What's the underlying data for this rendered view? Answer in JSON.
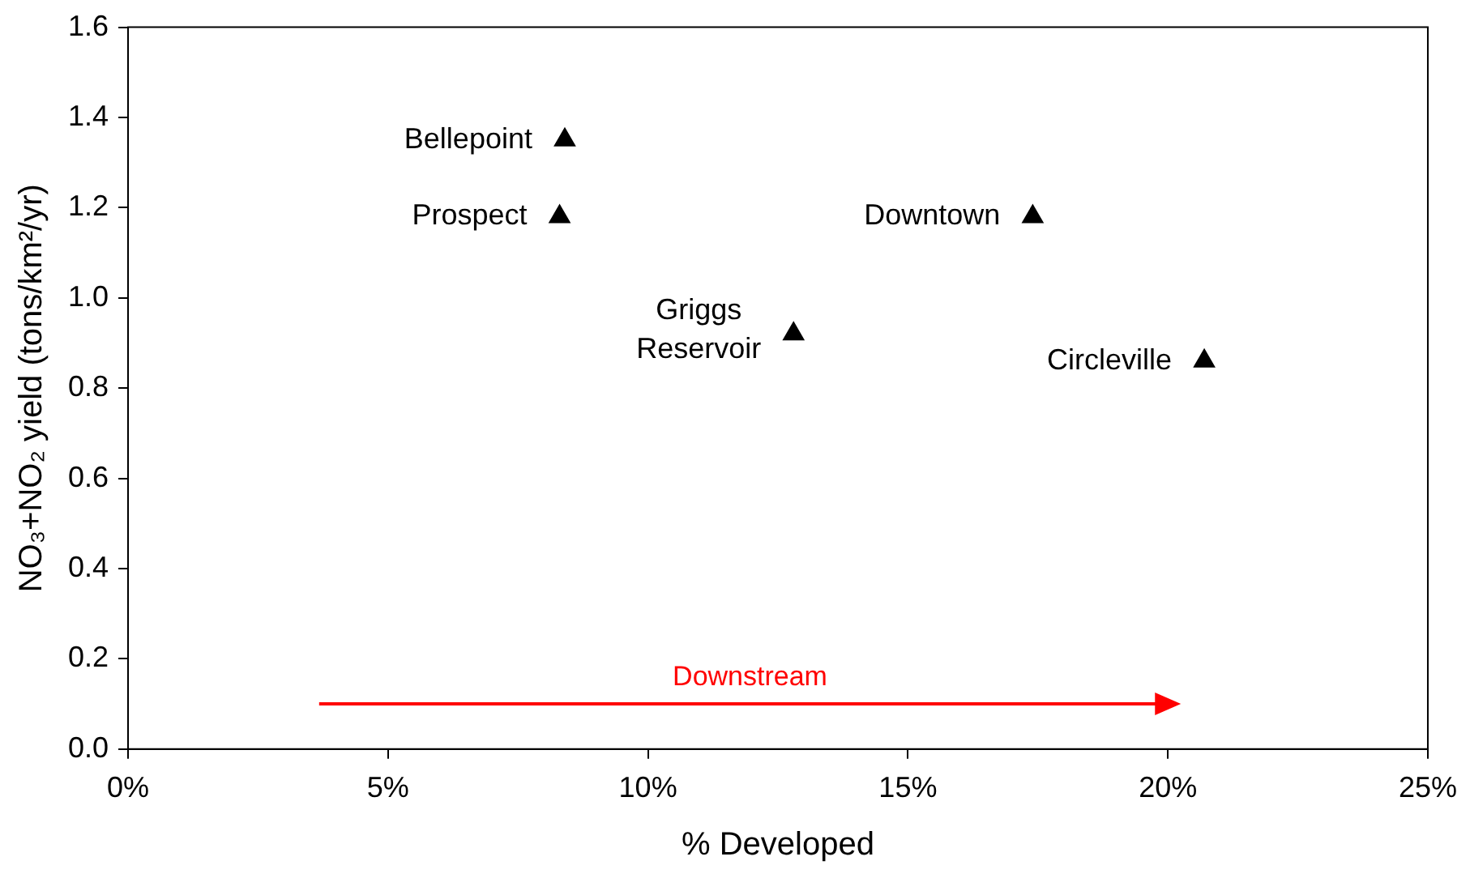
{
  "chart_data": {
    "type": "scatter",
    "xlabel": "% Developed",
    "ylabel": "NO₃+NO₂ yield (tons/km²/yr)",
    "x": [
      8.4,
      8.3,
      17.4,
      12.8,
      20.7
    ],
    "values": [
      1.35,
      1.18,
      1.18,
      0.92,
      0.86
    ],
    "color": "#000000",
    "marker": "triangle",
    "grid": false,
    "legend": false,
    "xlim": [
      0,
      25
    ],
    "xticks": [
      {
        "value": 0,
        "label": "0%"
      },
      {
        "value": 5,
        "label": "5%"
      },
      {
        "value": 10,
        "label": "10%"
      },
      {
        "value": 15,
        "label": "15%"
      },
      {
        "value": 20,
        "label": "20%"
      },
      {
        "value": 25,
        "label": "25%"
      }
    ],
    "ylim": [
      0,
      1.6
    ],
    "yticks": [
      {
        "value": 0,
        "label": "0.0"
      },
      {
        "value": 0.2,
        "label": "0.2"
      },
      {
        "value": 0.4,
        "label": "0.4"
      },
      {
        "value": 0.6,
        "label": "0.6"
      },
      {
        "value": 0.8,
        "label": "0.8"
      },
      {
        "value": 1,
        "label": "1.0"
      },
      {
        "value": 1.2,
        "label": "1.2"
      },
      {
        "value": 1.4,
        "label": "1.4"
      },
      {
        "value": 1.6,
        "label": "1.6"
      }
    ],
    "annotations": [
      {
        "text": "Bellepoint",
        "x": 8.4,
        "y": 1.35
      },
      {
        "text": "Prospect",
        "x": 8.3,
        "y": 1.18
      },
      {
        "text": "Downtown",
        "x": 17.4,
        "y": 1.18
      },
      {
        "text": "Griggs Reservoir",
        "x": 12.8,
        "y": 0.92
      },
      {
        "text": "Circleville",
        "x": 20.7,
        "y": 0.86
      },
      "Downstream"
    ]
  }
}
